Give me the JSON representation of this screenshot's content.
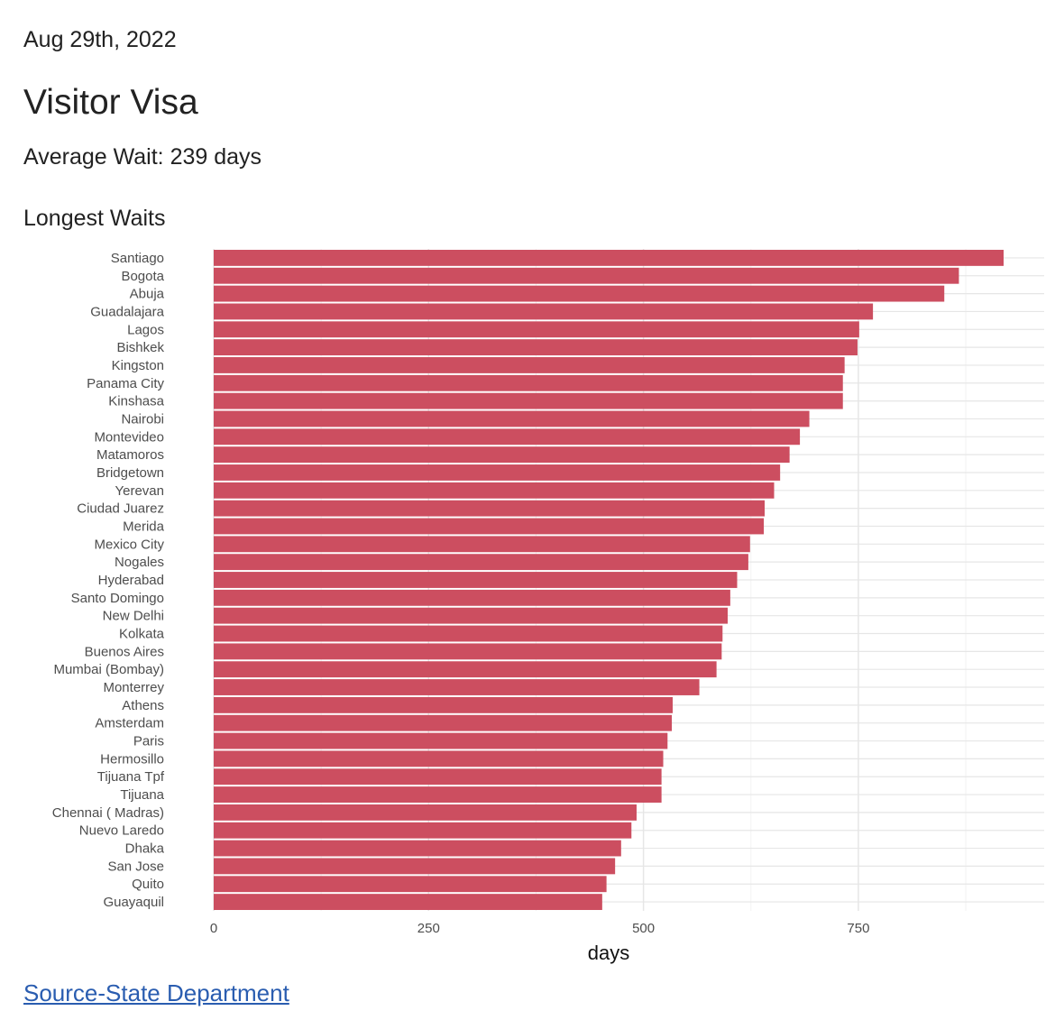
{
  "header": {
    "date": "Aug 29th, 2022",
    "title": "Visitor Visa",
    "average_wait": "Average Wait: 239 days",
    "section_title": "Longest Waits"
  },
  "footer": {
    "source_link": "Source-State Department"
  },
  "colors": {
    "bar": "#cc4e60",
    "grid_major": "#e6e6e6",
    "grid_minor": "#f2f2f2",
    "axis_text": "#4d4d4d"
  },
  "chart_data": {
    "type": "bar",
    "orientation": "horizontal",
    "xlabel": "days",
    "ylabel": "",
    "xlim": [
      0,
      920
    ],
    "xticks": [
      0,
      250,
      500,
      750
    ],
    "grid": true,
    "categories": [
      "Santiago",
      "Bogota",
      "Abuja",
      "Guadalajara",
      "Lagos",
      "Bishkek",
      "Kingston",
      "Panama City",
      "Kinshasa",
      "Nairobi",
      "Montevideo",
      "Matamoros",
      "Bridgetown",
      "Yerevan",
      "Ciudad Juarez",
      "Merida",
      "Mexico City",
      "Nogales",
      "Hyderabad",
      "Santo Domingo",
      "New Delhi",
      "Kolkata",
      "Buenos Aires",
      "Mumbai (Bombay)",
      "Monterrey",
      "Athens",
      "Amsterdam",
      "Paris",
      "Hermosillo",
      "Tijuana Tpf",
      "Tijuana",
      "Chennai ( Madras)",
      "Nuevo Laredo",
      "Dhaka",
      "San Jose",
      "Quito",
      "Guayaquil"
    ],
    "values": [
      919,
      867,
      850,
      767,
      751,
      749,
      734,
      732,
      732,
      693,
      682,
      670,
      659,
      652,
      641,
      640,
      624,
      622,
      609,
      601,
      598,
      592,
      591,
      585,
      565,
      534,
      533,
      528,
      523,
      521,
      521,
      492,
      486,
      474,
      467,
      457,
      452
    ]
  }
}
